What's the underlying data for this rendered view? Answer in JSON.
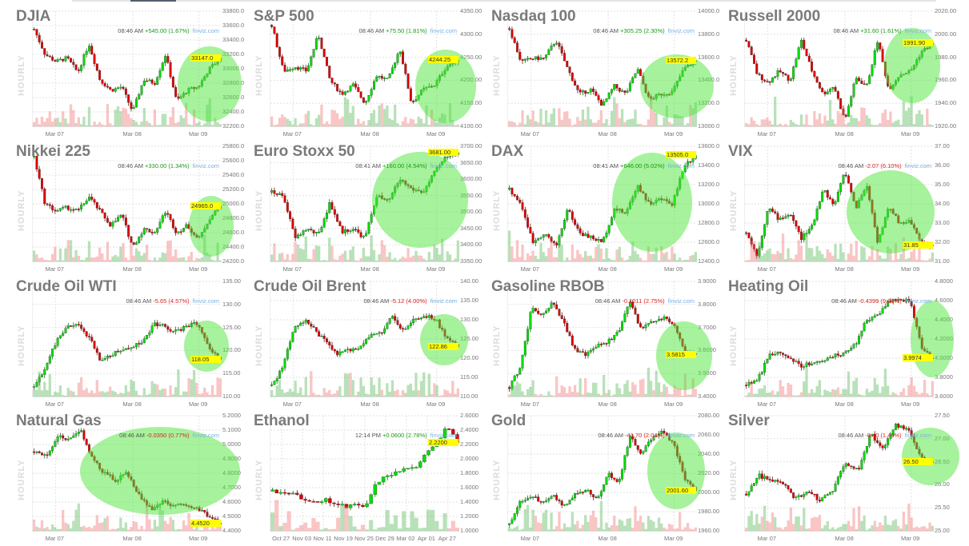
{
  "watermark": "finviz.com",
  "hourly_label": "HOURLY",
  "colors": {
    "up": "#00dd00",
    "down": "#dd0000",
    "highlight": "#7ee86a",
    "last_badge": "#ffff00"
  },
  "chart_data": [
    {
      "type": "candlestick",
      "title": "DJIA",
      "time": "08:46 AM",
      "change": "+545.00 (1.67%)",
      "dir": "up",
      "ylim": [
        32200,
        33800
      ],
      "yticks": [
        "33800.0",
        "33600.0",
        "33400.0",
        "33200.0",
        "33000.0",
        "32800.0",
        "32600.0",
        "32400.0",
        "32200.0"
      ],
      "last": "33147.0",
      "last_value": 33147,
      "xlabels": [
        "Mar 07",
        "Mar 08",
        "Mar 09"
      ],
      "closes": [
        33550,
        33200,
        33100,
        33150,
        32950,
        33350,
        32850,
        32700,
        32750,
        32400,
        32850,
        32800,
        33200,
        32550,
        32700,
        32750,
        33000,
        33147
      ]
    },
    {
      "type": "candlestick",
      "title": "S&P 500",
      "time": "08:46 AM",
      "change": "+75.50 (1.81%)",
      "dir": "up",
      "ylim": [
        4100,
        4350
      ],
      "yticks": [
        "4350.00",
        "4300.00",
        "4250.00",
        "4200.00",
        "4150.00",
        "4100.00"
      ],
      "last": "4244.25",
      "last_value": 4244.25,
      "xlabels": [
        "Mar 07",
        "Mar 08",
        "Mar 09"
      ],
      "closes": [
        4320,
        4220,
        4230,
        4220,
        4300,
        4200,
        4170,
        4190,
        4150,
        4210,
        4200,
        4270,
        4150,
        4180,
        4190,
        4230,
        4244
      ]
    },
    {
      "type": "candlestick",
      "title": "Nasdaq 100",
      "time": "08:46 AM",
      "change": "+305.25 (2.30%)",
      "dir": "up",
      "ylim": [
        13000,
        14000
      ],
      "yticks": [
        "14000.0",
        "13800.0",
        "13600.0",
        "13400.0",
        "13200.0",
        "13000.0"
      ],
      "last": "13572.2",
      "last_value": 13572.2,
      "xlabels": [
        "Mar 07",
        "Mar 08",
        "Mar 09"
      ],
      "closes": [
        13850,
        13560,
        13590,
        13590,
        13750,
        13500,
        13280,
        13320,
        13180,
        13350,
        13280,
        13500,
        13230,
        13280,
        13300,
        13500,
        13572
      ]
    },
    {
      "type": "candlestick",
      "title": "Russell 2000",
      "time": "08:46 AM",
      "change": "+31.60 (1.61%)",
      "dir": "up",
      "ylim": [
        1920,
        2020
      ],
      "yticks": [
        "2020.00",
        "2000.00",
        "1980.00",
        "1960.00",
        "1940.00",
        "1920.00"
      ],
      "last": "1991.90",
      "last_value": 1991.9,
      "xlabels": [
        "Mar 07",
        "Mar 08",
        "Mar 09"
      ],
      "closes": [
        1995,
        1965,
        1958,
        1968,
        1960,
        1995,
        1968,
        1948,
        1955,
        1925,
        1962,
        1955,
        1995,
        1952,
        1965,
        1968,
        1985,
        1991.9
      ]
    },
    {
      "type": "candlestick",
      "title": "Nikkei 225",
      "time": "08:46 AM",
      "change": "+330.00 (1.34%)",
      "dir": "up",
      "ylim": [
        24200,
        25800
      ],
      "yticks": [
        "25800.0",
        "25600.0",
        "25400.0",
        "25200.0",
        "25000.0",
        "24800.0",
        "24600.0",
        "24400.0",
        "24200.0"
      ],
      "last": "24965.0",
      "last_value": 24965,
      "xlabels": [
        "Mar 07",
        "Mar 08",
        "Mar 09"
      ],
      "closes": [
        25650,
        25000,
        24900,
        24950,
        24900,
        25100,
        24900,
        24700,
        24850,
        24400,
        24650,
        24600,
        24900,
        24600,
        24700,
        24500,
        24800,
        24965
      ]
    },
    {
      "type": "candlestick",
      "title": "Euro Stoxx 50",
      "time": "08:41 AM",
      "change": "+160.00 (4.54%)",
      "dir": "up",
      "ylim": [
        3350,
        3700
      ],
      "yticks": [
        "3700.00",
        "3650.00",
        "3600.00",
        "3550.00",
        "3500.00",
        "3450.00",
        "3400.00",
        "3350.00"
      ],
      "last": "3681.00",
      "last_value": 3681,
      "xlabels": [
        "Mar 07",
        "Mar 08",
        "Mar 09"
      ],
      "closes": [
        3560,
        3550,
        3420,
        3450,
        3430,
        3530,
        3440,
        3450,
        3420,
        3550,
        3530,
        3600,
        3570,
        3560,
        3620,
        3670,
        3681
      ]
    },
    {
      "type": "candlestick",
      "title": "DAX",
      "time": "08:41 AM",
      "change": "+646.00 (5.02%)",
      "dir": "up",
      "ylim": [
        12400,
        13600
      ],
      "yticks": [
        "13600.0",
        "13400.0",
        "13200.0",
        "13000.0",
        "12800.0",
        "12600.0",
        "12400.0"
      ],
      "last": "13505.0",
      "last_value": 13505,
      "xlabels": [
        "Mar 07",
        "Mar 08",
        "Mar 09"
      ],
      "closes": [
        13150,
        13000,
        12600,
        12700,
        12550,
        12950,
        12700,
        12650,
        12600,
        12950,
        12900,
        13200,
        13000,
        13050,
        13000,
        13400,
        13505
      ]
    },
    {
      "type": "candlestick",
      "title": "VIX",
      "time": "08:46 AM",
      "change": "-2.07 (6.10%)",
      "dir": "down",
      "ylim": [
        31,
        37
      ],
      "yticks": [
        "37.00",
        "36.00",
        "35.00",
        "34.00",
        "33.00",
        "32.00",
        "31.00"
      ],
      "last": "31.85",
      "last_value": 31.85,
      "xlabels": [
        "Mar 07",
        "Mar 08",
        "Mar 09"
      ],
      "closes": [
        32.5,
        31.3,
        33.8,
        33.2,
        33.5,
        32.2,
        32.8,
        34.8,
        33.9,
        35.7,
        33.8,
        35.0,
        32.0,
        33.8,
        33.0,
        33.1,
        32.0,
        31.85
      ]
    },
    {
      "type": "candlestick",
      "title": "Crude Oil WTI",
      "time": "08:46 AM",
      "change": "-5.65 (4.57%)",
      "dir": "down",
      "ylim": [
        110,
        135
      ],
      "yticks": [
        "135.00",
        "130.00",
        "125.00",
        "120.00",
        "115.00",
        "110.00"
      ],
      "last": "118.05",
      "last_value": 118.05,
      "xlabels": [
        "Mar 07",
        "Mar 08",
        "Mar 09"
      ],
      "closes": [
        112,
        116,
        122,
        125,
        125.5,
        123,
        118,
        119,
        120,
        121,
        122,
        126,
        125,
        124,
        125.5,
        125.8,
        120,
        118.05
      ]
    },
    {
      "type": "candlestick",
      "title": "Crude Oil Brent",
      "time": "08:46 AM",
      "change": "-5.12 (4.00%)",
      "dir": "down",
      "ylim": [
        110,
        140
      ],
      "yticks": [
        "140.00",
        "135.00",
        "130.00",
        "125.00",
        "120.00",
        "115.00",
        "110.00"
      ],
      "last": "122.86",
      "last_value": 122.86,
      "xlabels": [
        "Mar 07",
        "Mar 08",
        "Mar 09"
      ],
      "closes": [
        113,
        117.5,
        128,
        130,
        127,
        124,
        121,
        122,
        123,
        126,
        126.5,
        131,
        127,
        130,
        131,
        130,
        125,
        122.86
      ]
    },
    {
      "type": "candlestick",
      "title": "Gasoline RBOB",
      "time": "08:46 AM",
      "change": "-0.1011 (2.75%)",
      "dir": "down",
      "ylim": [
        3.4,
        3.9
      ],
      "yticks": [
        "3.9000",
        "3.8000",
        "3.7000",
        "3.6000",
        "3.5000",
        "3.4000"
      ],
      "last": "3.5815",
      "last_value": 3.5815,
      "xlabels": [
        "Mar 07",
        "Mar 08",
        "Mar 09"
      ],
      "closes": [
        3.44,
        3.53,
        3.78,
        3.76,
        3.81,
        3.72,
        3.6,
        3.58,
        3.62,
        3.64,
        3.68,
        3.82,
        3.69,
        3.73,
        3.74,
        3.72,
        3.6,
        3.5815
      ]
    },
    {
      "type": "candlestick",
      "title": "Heating Oil",
      "time": "08:46 AM",
      "change": "-0.4399 (9.91%)",
      "dir": "down",
      "ylim": [
        3.6,
        4.8
      ],
      "yticks": [
        "4.8000",
        "4.6000",
        "4.4000",
        "4.2000",
        "4.0000",
        "3.8000",
        "3.6000"
      ],
      "last": "3.9974",
      "last_value": 3.9974,
      "xlabels": [
        "Mar 07",
        "Mar 08",
        "Mar 09"
      ],
      "closes": [
        3.72,
        3.76,
        4.02,
        4.06,
        4.0,
        3.92,
        3.95,
        3.98,
        4.02,
        4.06,
        4.15,
        4.4,
        4.45,
        4.6,
        4.61,
        4.59,
        4.1,
        3.9974
      ]
    },
    {
      "type": "candlestick",
      "title": "Natural Gas",
      "time": "08:46 AM",
      "change": "-0.0350 (0.77%)",
      "dir": "down",
      "ylim": [
        4.4,
        5.2
      ],
      "yticks": [
        "5.2000",
        "5.1000",
        "5.0000",
        "4.9000",
        "4.8000",
        "4.7000",
        "4.6000",
        "4.5000",
        "4.4000"
      ],
      "last": "4.4520",
      "last_value": 4.452,
      "xlabels": [
        "Mar 07",
        "Mar 08",
        "Mar 09"
      ],
      "closes": [
        4.95,
        4.92,
        5.05,
        5.04,
        5.1,
        4.9,
        4.8,
        4.75,
        4.8,
        4.65,
        4.55,
        4.6,
        4.58,
        4.57,
        4.56,
        4.5,
        4.452
      ]
    },
    {
      "type": "candlestick",
      "title": "Ethanol",
      "time": "12:14 PM",
      "change": "+0.0600 (2.78%)",
      "dir": "up",
      "ylim": [
        1.0,
        2.6
      ],
      "yticks": [
        "2.6000",
        "2.4000",
        "2.2000",
        "2.0000",
        "1.8000",
        "1.6000",
        "1.4000",
        "1.2000",
        "1.0000"
      ],
      "last": "2.2200",
      "last_value": 2.22,
      "xlabels": [
        "Oct 27",
        "Nov 03",
        "Nov 11",
        "Nov 19",
        "Nov 25",
        "Dec 29",
        "Mar 02",
        "Apr 01",
        "Apr 27"
      ],
      "closes": [
        1.55,
        1.53,
        1.5,
        1.45,
        1.42,
        1.43,
        1.4,
        1.33,
        1.4,
        1.34,
        1.62,
        1.75,
        1.8,
        1.88,
        1.9,
        2.1,
        2.2,
        2.45,
        2.22
      ]
    },
    {
      "type": "candlestick",
      "title": "Gold",
      "time": "08:46 AM",
      "change": "-41.70 (2.04%)",
      "dir": "down",
      "ylim": [
        1960,
        2080
      ],
      "yticks": [
        "2080.00",
        "2060.00",
        "2040.00",
        "2020.00",
        "2000.00",
        "1980.00",
        "1960.00"
      ],
      "last": "2001.60",
      "last_value": 2001.6,
      "xlabels": [
        "Mar 07",
        "Mar 08",
        "Mar 09"
      ],
      "closes": [
        1966,
        1990,
        1997,
        1990,
        1998,
        1985,
        2000,
        2003,
        1992,
        2020,
        2010,
        2060,
        2040,
        2057,
        2065,
        2050,
        2015,
        2001.6
      ]
    },
    {
      "type": "candlestick",
      "title": "Silver",
      "time": "08:46 AM",
      "change": "-0.40 (1.49%)",
      "dir": "down",
      "ylim": [
        25,
        27.5
      ],
      "yticks": [
        "27.50",
        "27.00",
        "26.50",
        "26.00",
        "25.50",
        "25.00"
      ],
      "last": "26.50",
      "last_value": 26.5,
      "xlabels": [
        "Mar 07",
        "Mar 08",
        "Mar 09"
      ],
      "closes": [
        25.8,
        26.2,
        26.1,
        26.0,
        25.7,
        25.85,
        25.65,
        25.9,
        26.5,
        26.3,
        27.1,
        26.8,
        27.3,
        27.2,
        26.6,
        26.5
      ]
    }
  ]
}
